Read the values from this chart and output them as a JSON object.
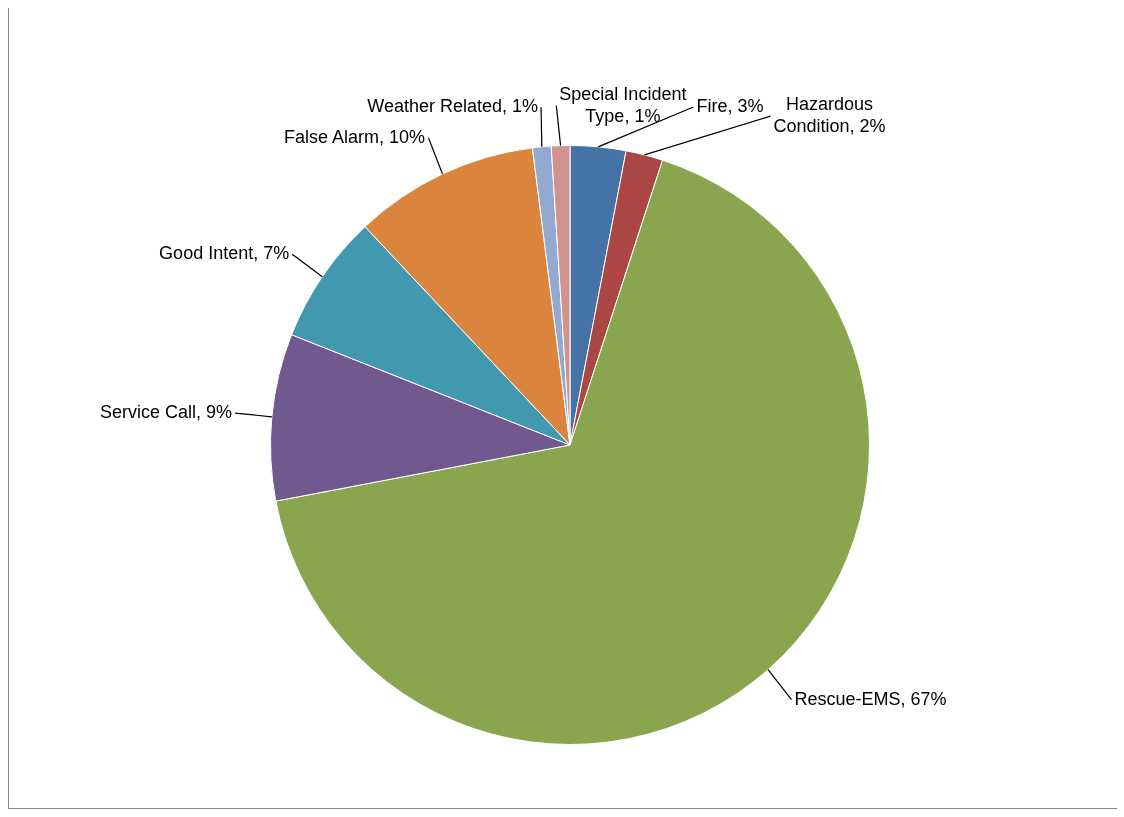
{
  "chart_data": {
    "type": "pie",
    "categories": [
      "Fire",
      "Hazardous Condition",
      "Rescue-EMS",
      "Service Call",
      "Good Intent",
      "False Alarm",
      "Weather Related",
      "Special Incident Type"
    ],
    "values": [
      3,
      2,
      67,
      9,
      7,
      10,
      1,
      1
    ],
    "value_labels": [
      "3%",
      "2%",
      "67%",
      "9%",
      "7%",
      "10%",
      "1%",
      "1%"
    ],
    "colors": [
      "#4572a7",
      "#aa4643",
      "#89a54e",
      "#71588f",
      "#4198af",
      "#db843d",
      "#93a9cf",
      "#d19392"
    ],
    "legend": false
  }
}
